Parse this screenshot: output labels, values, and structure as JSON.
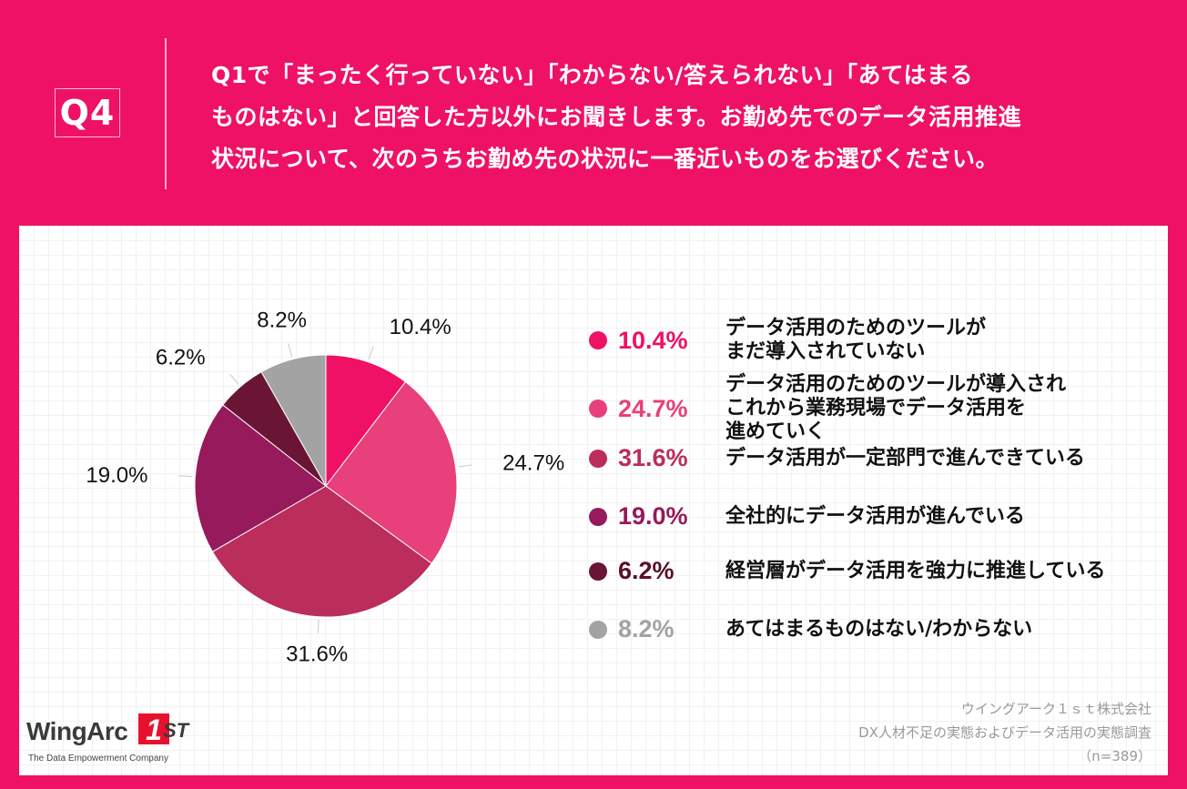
{
  "header": {
    "badge": "Q4",
    "question": "Q1で「まったく行っていない」「わからない/答えられない」「あてはまる\nものはない」と回答した方以外にお聞きします。お勤め先でのデータ活用推進\n状況について、次のうちお勤め先の状況に一番近いものをお選びください。"
  },
  "chart_data": {
    "type": "pie",
    "categories": [
      "データ活用のためのツールが\nまだ導入されていない",
      "データ活用のためのツールが導入され\nこれから業務現場でデータ活用を\n進めていく",
      "データ活用が一定部門で進んできている",
      "全社的にデータ活用が進んでいる",
      "経営層がデータ活用を強力に推進している",
      "あてはまるものはない/わからない"
    ],
    "values": [
      10.4,
      24.7,
      31.6,
      19.0,
      6.2,
      8.2
    ],
    "value_labels": [
      "10.4%",
      "24.7%",
      "31.6%",
      "19.0%",
      "6.2%",
      "8.2%"
    ],
    "colors": [
      "#ee1166",
      "#e8407a",
      "#bb2d5b",
      "#961a5c",
      "#6b1535",
      "#a3a3a3"
    ],
    "legend_position": "right",
    "start_angle": "12 o'clock, clockwise"
  },
  "brand": {
    "name": "WingArc",
    "mark": "1",
    "suffix": "ST",
    "tagline": "The Data Empowerment Company"
  },
  "source": {
    "company": "ウイングアーク１ｓｔ株式会社",
    "survey": "DX人材不足の実態およびデータ活用の実態調査",
    "sample": "（n=389）"
  }
}
